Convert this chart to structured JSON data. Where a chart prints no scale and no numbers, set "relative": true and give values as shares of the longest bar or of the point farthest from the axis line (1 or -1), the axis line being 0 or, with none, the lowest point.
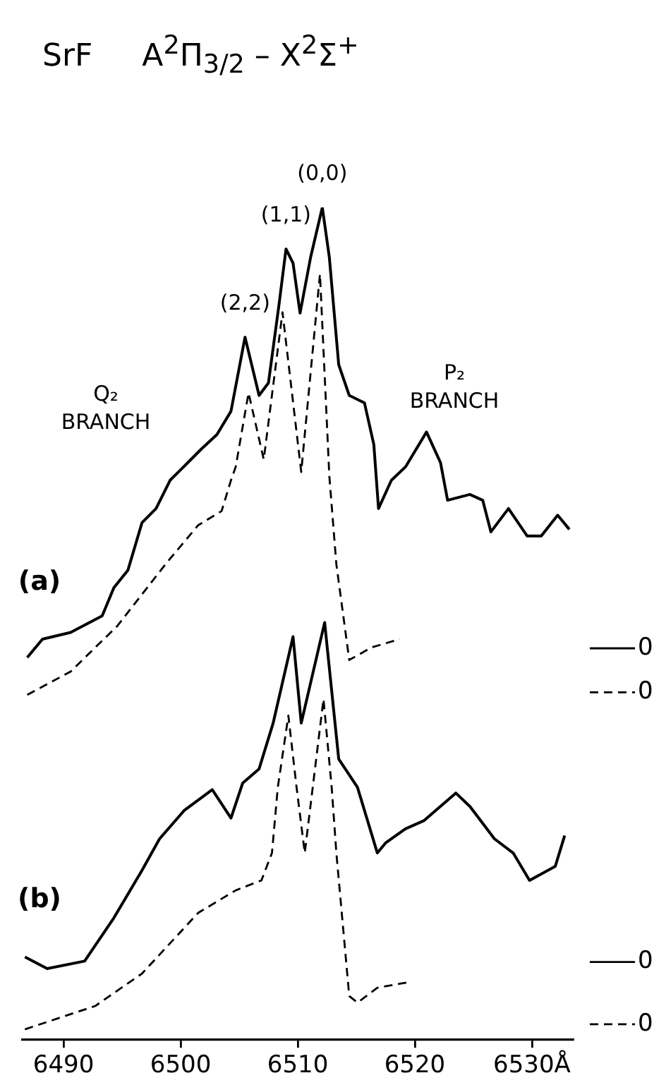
{
  "chart_data": {
    "type": "line",
    "title": "SrF     A$^{2}$Π$_{3/2}$ – X$^{2}$Σ$^{+}$",
    "relative": true,
    "marker": "none",
    "xlim": [
      6486.5,
      6533.5
    ],
    "xticks": [
      6490,
      6500,
      6510,
      6520,
      {
        "value": 6530,
        "label": "6530Å"
      }
    ],
    "series": [
      {
        "color": "#000000",
        "line_style": "solid",
        "x": [
          6486.9,
          6488.2,
          6490.6,
          6493.3,
          6494.3,
          6495.5,
          6496.7,
          6497.9,
          6499.1,
          6500.6,
          6501.8,
          6503.1,
          6504.3,
          6505.5,
          6506.7,
          6507.5,
          6508.4,
          6509.0,
          6509.6,
          6510.2,
          6511.1,
          6512.1,
          6512.7,
          6513.5,
          6514.4,
          6515.7,
          6516.5,
          6516.9,
          6518.0,
          6519.2,
          6521.0,
          6522.2,
          6522.8,
          6524.7,
          6525.8,
          6526.5,
          6528.0,
          6529.6,
          6530.8,
          6532.2,
          6533.2
        ],
        "values": [
          0.459,
          0.481,
          0.489,
          0.509,
          0.543,
          0.564,
          0.621,
          0.638,
          0.672,
          0.693,
          0.71,
          0.727,
          0.755,
          0.844,
          0.774,
          0.789,
          0.883,
          0.95,
          0.933,
          0.873,
          0.94,
          1.0,
          0.94,
          0.811,
          0.774,
          0.765,
          0.715,
          0.638,
          0.672,
          0.688,
          0.73,
          0.693,
          0.648,
          0.655,
          0.648,
          0.61,
          0.638,
          0.605,
          0.605,
          0.63,
          0.613
        ]
      },
      {
        "color": "#000000",
        "line_style": "dashed",
        "x": [
          6486.9,
          6490.6,
          6494.6,
          6498.7,
          6501.5,
          6503.5,
          6504.3,
          6504.7,
          6505.8,
          6507.1,
          6508.7,
          6510.3,
          6511.9,
          6512.7,
          6513.3,
          6514.4,
          6516.3,
          6518.7
        ],
        "values": [
          0.414,
          0.442,
          0.497,
          0.571,
          0.618,
          0.635,
          0.672,
          0.688,
          0.777,
          0.697,
          0.874,
          0.682,
          0.92,
          0.677,
          0.571,
          0.456,
          0.471,
          0.481
        ]
      },
      {
        "color": "#000000",
        "line_style": "solid",
        "x": [
          6486.7,
          6488.6,
          6491.8,
          6494.3,
          6496.7,
          6498.2,
          6500.3,
          6502.7,
          6504.3,
          6505.3,
          6506.7,
          6507.9,
          6509.6,
          6510.3,
          6512.3,
          6513.5,
          6515.1,
          6516.8,
          6517.5,
          6519.2,
          6520.8,
          6523.5,
          6524.7,
          6526.8,
          6528.4,
          6529.8,
          6532.0,
          6532.8
        ],
        "values": [
          0.099,
          0.085,
          0.094,
          0.146,
          0.203,
          0.241,
          0.275,
          0.3,
          0.266,
          0.308,
          0.325,
          0.38,
          0.484,
          0.38,
          0.501,
          0.337,
          0.303,
          0.224,
          0.236,
          0.253,
          0.263,
          0.296,
          0.28,
          0.241,
          0.224,
          0.191,
          0.208,
          0.245
        ]
      },
      {
        "color": "#000000",
        "line_style": "dashed",
        "x": [
          6486.7,
          6492.7,
          6496.7,
          6501.5,
          6504.7,
          6506.9,
          6507.8,
          6508.3,
          6509.2,
          6509.9,
          6510.6,
          6512.2,
          6512.9,
          6513.3,
          6514.4,
          6515.1,
          6516.8,
          6519.6
        ],
        "values": [
          0.012,
          0.04,
          0.079,
          0.152,
          0.179,
          0.191,
          0.224,
          0.303,
          0.389,
          0.303,
          0.224,
          0.409,
          0.303,
          0.224,
          0.052,
          0.044,
          0.062,
          0.069
        ]
      }
    ],
    "ref_lines": [
      {
        "axis": "y",
        "value": 0.47,
        "label": "0",
        "line_style": "solid"
      },
      {
        "axis": "y",
        "value": 0.417,
        "label": "0",
        "line_style": "dashed"
      },
      {
        "axis": "y",
        "value": 0.093,
        "label": "0",
        "line_style": "solid"
      },
      {
        "axis": "y",
        "value": 0.018,
        "label": "0",
        "line_style": "dashed"
      }
    ],
    "annotations": [
      {
        "text": "(0,0)",
        "x": 6512.1,
        "y": 1.0
      },
      {
        "text": "(1,1)",
        "x": 6509.0,
        "y": 0.95
      },
      {
        "text": "(2,2)",
        "x": 6505.5,
        "y": 0.844
      },
      "Q₂ BRANCH",
      "P₂ BRANCH",
      "(a)",
      "(b)"
    ]
  }
}
